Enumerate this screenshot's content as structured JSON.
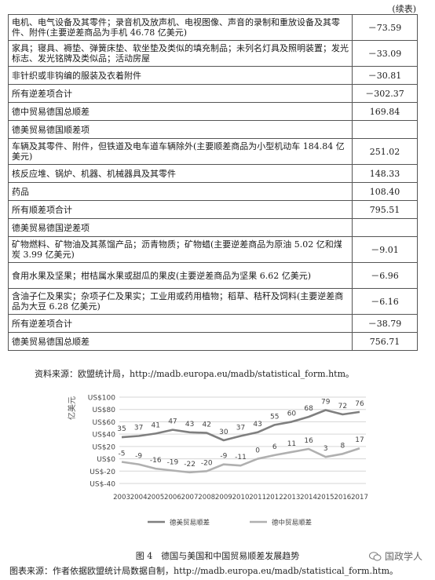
{
  "table": {
    "continued": "(续表)",
    "rows": [
      {
        "label": "电机、电气设备及其零件；录音机及放声机、电视图像、声音的录制和重放设备及其零件、附件(主要逆差商品为手机 46.78 亿美元)",
        "value": "－73.59",
        "lines": 2
      },
      {
        "label": "家具；寝具、褥垫、弹簧床垫、软坐垫及类似的填充制品；未列名灯具及照明装置；发光标志、发光铭牌及类似品；活动房屋",
        "value": "－33.09",
        "lines": 2
      },
      {
        "label": "非针织或非钩编的服装及衣着附件",
        "value": "－30.81",
        "lines": 1
      },
      {
        "label": "所有逆差项合计",
        "value": "－302.37",
        "lines": 1
      },
      {
        "label": "德中贸易德国总顺差",
        "value": "169.84",
        "lines": 1
      },
      {
        "label": "德美贸易德国顺差项",
        "value": "",
        "lines": 1
      },
      {
        "label": "车辆及其零件、附件，但铁道及电车道车辆除外(主要顺差商品为小型机动车 184.84 亿美元)",
        "value": "251.02",
        "lines": 2
      },
      {
        "label": "核反应堆、锅炉、机器、机械器具及其零件",
        "value": "148.33",
        "lines": 1
      },
      {
        "label": "药品",
        "value": "108.40",
        "lines": 1
      },
      {
        "label": "所有顺差项合计",
        "value": "795.51",
        "lines": 1
      },
      {
        "label": "德美贸易德国逆差项",
        "value": "",
        "lines": 1
      },
      {
        "label": "矿物燃料、矿物油及其蒸馏产品；沥青物质；矿物蜡(主要逆差商品为原油 5.02 亿和煤炭 3.99 亿美元)",
        "value": "－9.01",
        "lines": 2
      },
      {
        "label": "食用水果及坚果；柑桔属水果或甜瓜的果皮(主要逆差商品为坚果 6.62 亿美元)",
        "value": "－6.96",
        "lines": 2
      },
      {
        "label": "含油子仁及果实；杂项子仁及果实；工业用或药用植物；稻草、秸秆及饲料(主要逆差商品为大豆 6.28 亿美元)",
        "value": "－6.16",
        "lines": 2
      },
      {
        "label": "所有逆差项合计",
        "value": "－38.79",
        "lines": 1
      },
      {
        "label": "德美贸易德国总顺差",
        "value": "756.71",
        "lines": 1
      }
    ]
  },
  "source1": "资料来源：欧盟统计局，http://madb.europa.eu/madb/statistical_form.htm。",
  "chart_data": {
    "type": "line",
    "ylabel": "亿美元",
    "x": [
      "2003",
      "2004",
      "2005",
      "2006",
      "2007",
      "2008",
      "2009",
      "2010",
      "2011",
      "2012",
      "2013",
      "2014",
      "2015",
      "2016",
      "2017"
    ],
    "yticks": [
      -40,
      -20,
      0,
      20,
      40,
      60,
      80,
      100
    ],
    "ytick_labels": [
      "US$-40",
      "US$-20",
      "US$0",
      "US$20",
      "US$40",
      "US$60",
      "US$80",
      "US$100"
    ],
    "ylim": [
      -40,
      100
    ],
    "grid": true,
    "legend": "bottom",
    "series": [
      {
        "name": "德美贸易顺差",
        "color": "#7f7f7f",
        "values": [
          35,
          37,
          41,
          47,
          43,
          42,
          30,
          37,
          43,
          55,
          60,
          68,
          79,
          72,
          76
        ],
        "labels": [
          "35",
          "37",
          "41",
          "47",
          "43",
          "42",
          "30",
          "37",
          "43",
          "55",
          "60",
          "68",
          "79",
          "72",
          "76"
        ]
      },
      {
        "name": "德中贸易顺差",
        "color": "#b0b0b0",
        "values": [
          -5,
          -9,
          -16,
          -19,
          -22,
          -20,
          -9,
          -11,
          0,
          6,
          11,
          16,
          3,
          8,
          17
        ],
        "labels": [
          "-5",
          "-9",
          "-16",
          "-19",
          "-22",
          "-20",
          "-9",
          "-11",
          "0",
          "6",
          "11",
          "16",
          "3",
          "8",
          "17"
        ]
      }
    ]
  },
  "caption": "图 4　德国与美国和中国贸易顺差发展趋势",
  "source2": "图表来源：作者依据欧盟统计局数据自制，http://madb.europa.eu/madb/statistical_form.htm。",
  "watermark": "国政学人"
}
